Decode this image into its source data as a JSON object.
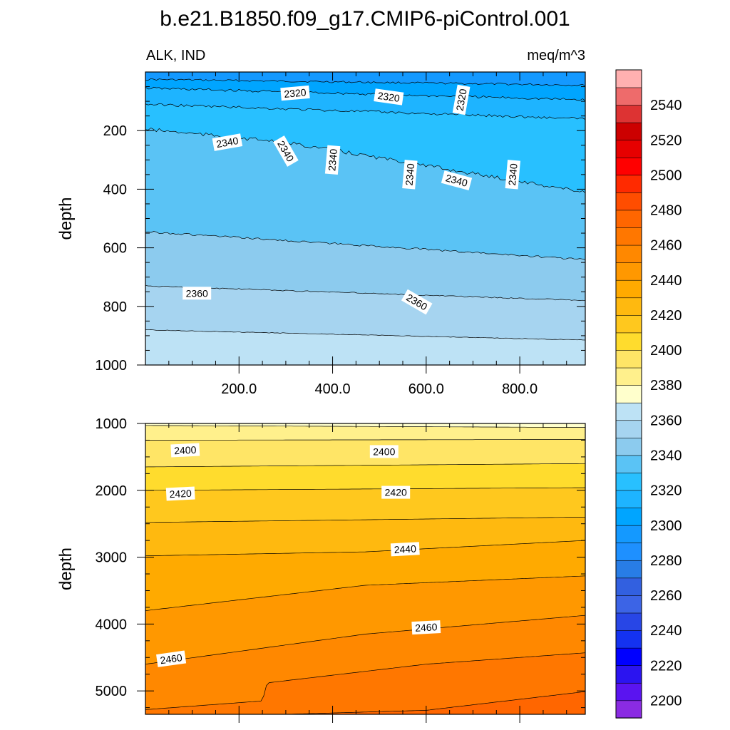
{
  "title": "b.e21.B1850.f09_g17.CMIP6-piControl.001",
  "subtitle_left": "ALK, IND",
  "subtitle_right": "meq/m^3",
  "chart_data": [
    {
      "type": "heatmap",
      "panel": "upper",
      "ylabel": "depth",
      "xlim": [
        0,
        940
      ],
      "ylim": [
        1000,
        0
      ],
      "y_reversed": true,
      "xticks": [
        {
          "value": 200,
          "label": "200.0"
        },
        {
          "value": 400,
          "label": "400.0"
        },
        {
          "value": 600,
          "label": "600.0"
        },
        {
          "value": 800,
          "label": "800.0"
        }
      ],
      "yticks": [
        {
          "value": 200,
          "label": "200"
        },
        {
          "value": 400,
          "label": "400"
        },
        {
          "value": 600,
          "label": "600"
        },
        {
          "value": 800,
          "label": "800"
        },
        {
          "value": 1000,
          "label": "1000"
        }
      ],
      "contours": [
        {
          "level": 2300,
          "depth_at_x": [
            [
              0,
              25
            ],
            [
              940,
              45
            ]
          ],
          "noise": 3
        },
        {
          "level": 2310,
          "depth_at_x": [
            [
              0,
              55
            ],
            [
              940,
              95
            ]
          ],
          "noise": 4
        },
        {
          "level": 2320,
          "depth_at_x": [
            [
              0,
              110
            ],
            [
              940,
              160
            ]
          ],
          "noise": 4
        },
        {
          "level": 2330,
          "depth_at_x": [
            [
              0,
              195
            ],
            [
              300,
              240
            ],
            [
              600,
              320
            ],
            [
              940,
              410
            ]
          ],
          "noise": 6
        },
        {
          "level": 2340,
          "depth_at_x": [
            [
              0,
              545
            ],
            [
              940,
              640
            ]
          ],
          "noise": 3
        },
        {
          "level": 2350,
          "depth_at_x": [
            [
              0,
              730
            ],
            [
              940,
              780
            ]
          ],
          "noise": 2
        },
        {
          "level": 2360,
          "depth_at_x": [
            [
              0,
              880
            ],
            [
              940,
              915
            ]
          ],
          "noise": 1
        }
      ],
      "contour_labels": [
        {
          "text": "2320",
          "x": 320,
          "depth": 72,
          "angle": -5
        },
        {
          "text": "2320",
          "x": 520,
          "depth": 85,
          "angle": 8
        },
        {
          "text": "2320",
          "x": 675,
          "depth": 95,
          "angle": -80
        },
        {
          "text": "2340",
          "x": 175,
          "depth": 240,
          "angle": -10
        },
        {
          "text": "2340",
          "x": 300,
          "depth": 270,
          "angle": 60
        },
        {
          "text": "2340",
          "x": 400,
          "depth": 300,
          "angle": -85
        },
        {
          "text": "2340",
          "x": 565,
          "depth": 350,
          "angle": -85
        },
        {
          "text": "2340",
          "x": 665,
          "depth": 370,
          "angle": 15
        },
        {
          "text": "2340",
          "x": 785,
          "depth": 350,
          "angle": -85
        },
        {
          "text": "2360",
          "x": 110,
          "depth": 755,
          "angle": 0
        },
        {
          "text": "2360",
          "x": 580,
          "depth": 785,
          "angle": 30
        }
      ]
    },
    {
      "type": "heatmap",
      "panel": "lower",
      "ylabel": "depth",
      "xlim": [
        0,
        940
      ],
      "ylim": [
        5350,
        1000
      ],
      "y_reversed": true,
      "xticks": [],
      "yticks": [
        {
          "value": 1000,
          "label": "1000"
        },
        {
          "value": 2000,
          "label": "2000"
        },
        {
          "value": 3000,
          "label": "3000"
        },
        {
          "value": 4000,
          "label": "4000"
        },
        {
          "value": 5000,
          "label": "5000"
        }
      ],
      "contours": [
        {
          "level": 2380,
          "depth_at_x": [
            [
              0,
              1030
            ],
            [
              940,
              1060
            ]
          ],
          "noise": 0
        },
        {
          "level": 2390,
          "depth_at_x": [
            [
              0,
              1250
            ],
            [
              940,
              1240
            ]
          ],
          "noise": 0
        },
        {
          "level": 2400,
          "depth_at_x": [
            [
              0,
              1650
            ],
            [
              940,
              1600
            ]
          ],
          "noise": 0
        },
        {
          "level": 2410,
          "depth_at_x": [
            [
              0,
              2000
            ],
            [
              940,
              1960
            ]
          ],
          "noise": 0
        },
        {
          "level": 2420,
          "depth_at_x": [
            [
              0,
              2480
            ],
            [
              940,
              2400
            ]
          ],
          "noise": 0
        },
        {
          "level": 2430,
          "depth_at_x": [
            [
              0,
              2980
            ],
            [
              470,
              2920
            ],
            [
              940,
              2750
            ]
          ],
          "noise": 0
        },
        {
          "level": 2440,
          "depth_at_x": [
            [
              0,
              3800
            ],
            [
              470,
              3420
            ],
            [
              940,
              3280
            ]
          ],
          "noise": 0
        },
        {
          "level": 2450,
          "depth_at_x": [
            [
              0,
              4600
            ],
            [
              470,
              4150
            ],
            [
              940,
              3870
            ]
          ],
          "noise": 0
        },
        {
          "level": 2460,
          "depth_at_x": [
            [
              0,
              5280
            ],
            [
              250,
              5150
            ],
            [
              260,
              4880
            ],
            [
              600,
              4600
            ],
            [
              940,
              4430
            ]
          ],
          "noise": 0
        },
        {
          "level": 2470,
          "depth_at_x": [
            [
              300,
              5350
            ],
            [
              600,
              5290
            ],
            [
              940,
              5010
            ]
          ],
          "noise": 0
        }
      ],
      "contour_labels": [
        {
          "text": "2400",
          "x": 85,
          "depth": 1400,
          "angle": -3
        },
        {
          "text": "2400",
          "x": 510,
          "depth": 1420,
          "angle": 0
        },
        {
          "text": "2420",
          "x": 75,
          "depth": 2050,
          "angle": -3
        },
        {
          "text": "2420",
          "x": 535,
          "depth": 2030,
          "angle": 0
        },
        {
          "text": "2440",
          "x": 555,
          "depth": 2880,
          "angle": -3
        },
        {
          "text": "2460",
          "x": 600,
          "depth": 4050,
          "angle": -3
        },
        {
          "text": "2460",
          "x": 55,
          "depth": 4520,
          "angle": -8
        }
      ]
    }
  ],
  "colorbar": {
    "levels": [
      2200,
      2210,
      2220,
      2230,
      2240,
      2250,
      2260,
      2270,
      2280,
      2290,
      2300,
      2310,
      2320,
      2330,
      2340,
      2350,
      2360,
      2370,
      2380,
      2390,
      2400,
      2410,
      2420,
      2430,
      2440,
      2450,
      2460,
      2470,
      2480,
      2490,
      2500,
      2510,
      2520,
      2530,
      2540,
      2550
    ],
    "colors": [
      "#8a2be2",
      "#5a14f0",
      "#2b14f0",
      "#0000ff",
      "#1432f0",
      "#2846e6",
      "#3c64e6",
      "#3260e0",
      "#287de6",
      "#1e90ff",
      "#1499ff",
      "#00a5ff",
      "#1eb4ff",
      "#28c0ff",
      "#5ac3f5",
      "#8ccbee",
      "#a6d4f0",
      "#bde2f5",
      "#ffffcc",
      "#fff08c",
      "#ffe566",
      "#ffdc2d",
      "#ffc81e",
      "#ffb90f",
      "#ffaa00",
      "#ff9800",
      "#ff8800",
      "#ff7700",
      "#ff6600",
      "#ff4d00",
      "#ff2a00",
      "#ff0000",
      "#e60000",
      "#cc0000",
      "#dd3333",
      "#ee6b6b",
      "#ffb0b0"
    ],
    "tick_labels": [
      "2200",
      "2220",
      "2240",
      "2260",
      "2280",
      "2300",
      "2320",
      "2340",
      "2360",
      "2380",
      "2400",
      "2420",
      "2440",
      "2460",
      "2480",
      "2500",
      "2520",
      "2540"
    ]
  }
}
